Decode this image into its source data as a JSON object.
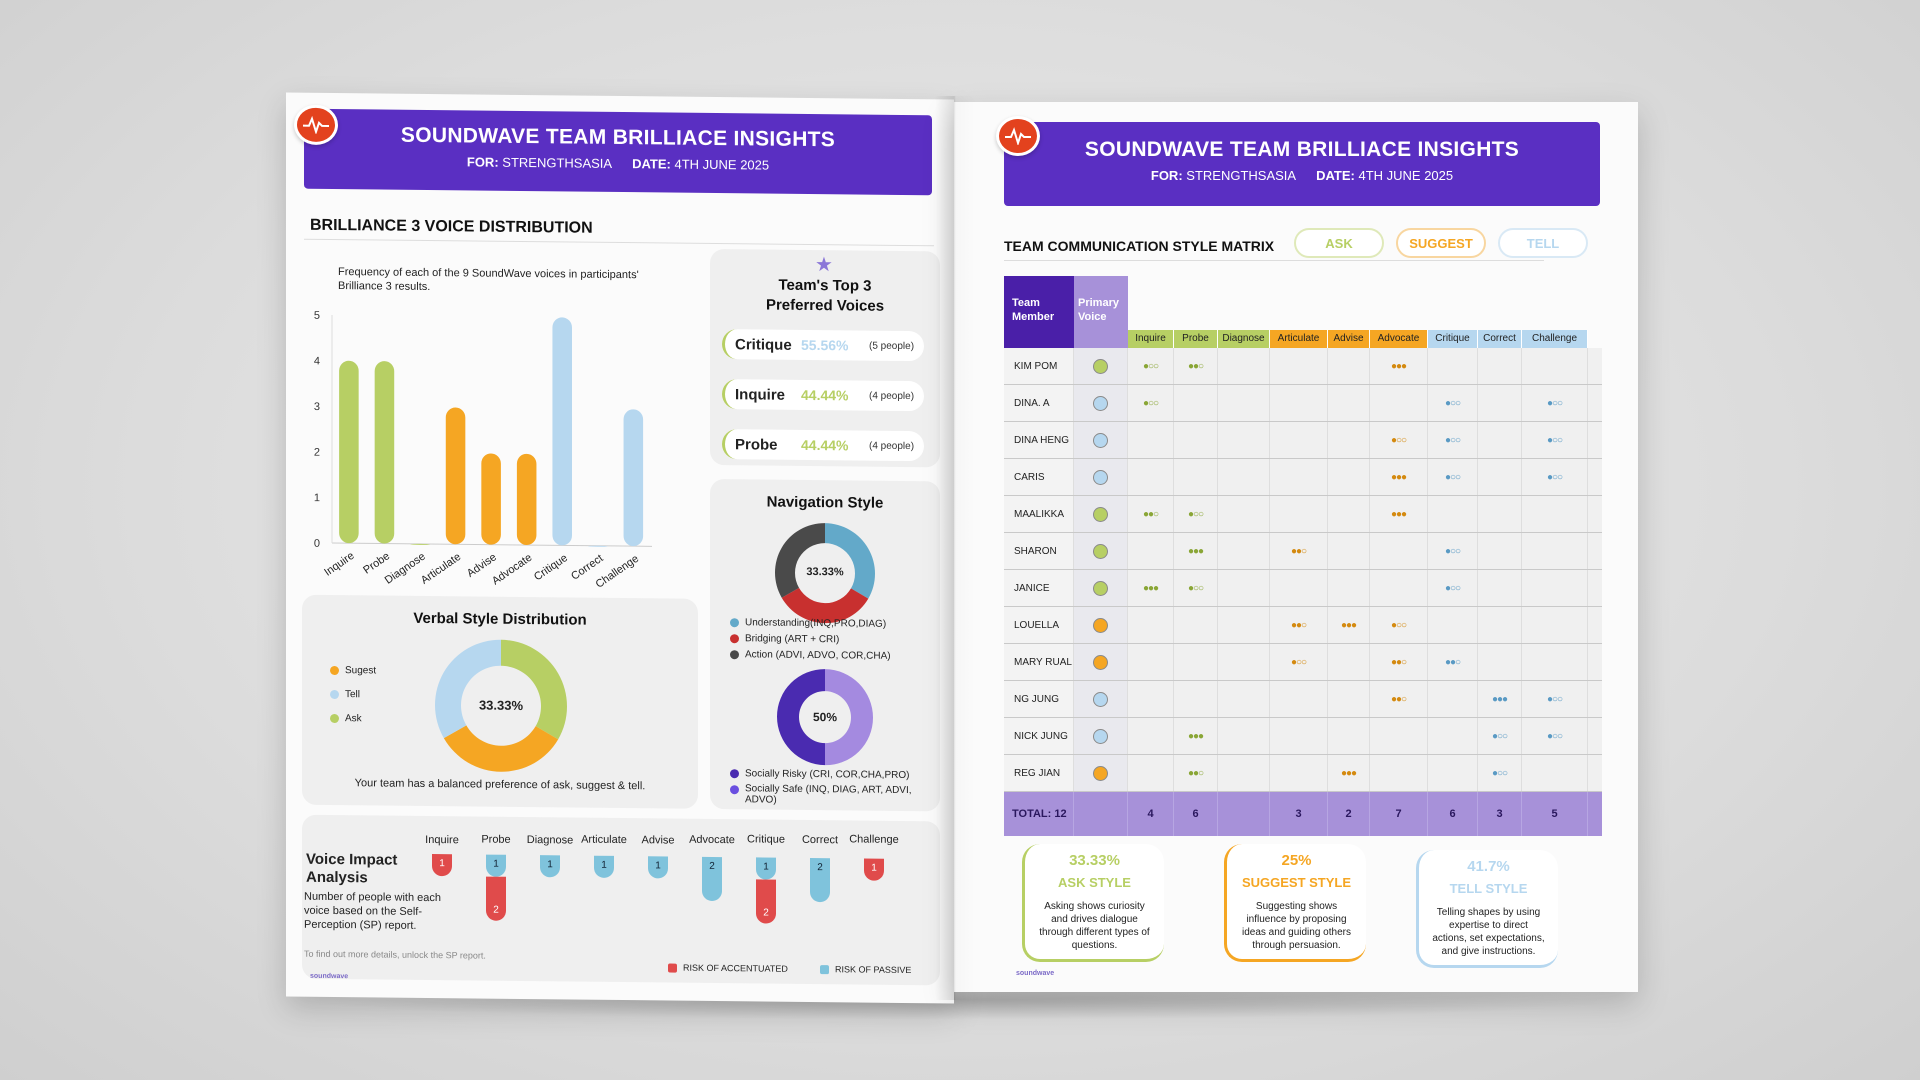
{
  "colors": {
    "banner": "#5a2fc2",
    "ask": "#b7cf64",
    "suggest": "#f5a623",
    "tell": "#b6d7ef",
    "risk_accentuated": "#e04b4b",
    "risk_passive": "#7fc3dc",
    "purple": "#5a2fc2",
    "lilac": "#a791d9"
  },
  "left": {
    "banner": {
      "title": "SOUNDWAVE TEAM BRILLIACE INSIGHTS",
      "for_label": "FOR:",
      "for_value": "STRENGTHSASIA",
      "date_label": "DATE:",
      "date_value": "4TH JUNE 2025"
    },
    "distribution_title": "BRILLIANCE 3 VOICE DISTRIBUTION",
    "bar_note": "Frequency of each of the 9 SoundWave voices in participants' Brilliance 3 results.",
    "top3": {
      "title": "Team's Top 3 Preferred Voices",
      "items": [
        {
          "name": "Critique",
          "pct": "55.56%",
          "people": "(5 people)"
        },
        {
          "name": "Inquire",
          "pct": "44.44%",
          "people": "(4 people)"
        },
        {
          "name": "Probe",
          "pct": "44.44%",
          "people": "(4 people)"
        }
      ]
    },
    "navigation": {
      "title": "Navigation Style",
      "donut1_label": "33.33%",
      "legend1": [
        "Understanding(INQ,PRO,DIAG)",
        "Bridging (ART + CRI)",
        "Action (ADVI, ADVO, COR,CHA)"
      ],
      "donut2_label": "50%",
      "legend2": [
        "Socially Risky (CRI, COR,CHA,PRO)",
        "Socially Safe (INQ, DIAG, ART, ADVI, ADVO)"
      ]
    },
    "verbal": {
      "title": "Verbal Style Distribution",
      "legend": [
        "Sugest",
        "Tell",
        "Ask"
      ],
      "center": "33.33%",
      "note": "Your team has a balanced preference of ask, suggest & tell."
    },
    "impact": {
      "title_line1": "Voice Impact",
      "title_line2": "Analysis",
      "desc": "Number of people with each voice based on the  Self-Perception (SP) report.",
      "footnote": "To find out more details, unlock the SP report.",
      "legend_acc": "RISK OF ACCENTUATED",
      "legend_pas": "RISK OF PASSIVE",
      "columns": [
        {
          "label": "Inquire",
          "passive": "",
          "accentuated": "1"
        },
        {
          "label": "Probe",
          "passive": "1",
          "accentuated": "2"
        },
        {
          "label": "Diagnose",
          "passive": "1",
          "accentuated": ""
        },
        {
          "label": "Articulate",
          "passive": "1",
          "accentuated": ""
        },
        {
          "label": "Advise",
          "passive": "1",
          "accentuated": ""
        },
        {
          "label": "Advocate",
          "passive": "2",
          "accentuated": ""
        },
        {
          "label": "Critique",
          "passive": "1",
          "accentuated": "2"
        },
        {
          "label": "Correct",
          "passive": "2",
          "accentuated": ""
        },
        {
          "label": "Challenge",
          "passive": "",
          "accentuated": "1"
        }
      ]
    },
    "brand": "soundwave"
  },
  "chart_data": [
    {
      "type": "bar",
      "title": "Brilliance 3 Voice Distribution",
      "categories": [
        "Inquire",
        "Probe",
        "Diagnose",
        "Articulate",
        "Advise",
        "Advocate",
        "Critique",
        "Correct",
        "Challenge"
      ],
      "values": [
        4,
        4,
        0,
        3,
        2,
        2,
        5,
        0,
        3
      ],
      "bar_colors": [
        "#b7cf64",
        "#b7cf64",
        "#b7cf64",
        "#f5a623",
        "#f5a623",
        "#f5a623",
        "#b6d7ef",
        "#b6d7ef",
        "#b6d7ef"
      ],
      "yticks": [
        0,
        1,
        2,
        3,
        4,
        5
      ],
      "ylim": [
        0,
        5
      ]
    },
    {
      "type": "pie",
      "title": "Verbal Style Distribution",
      "labels": [
        "Ask",
        "Suggest",
        "Tell"
      ],
      "values": [
        33.33,
        33.33,
        33.33
      ],
      "colors": [
        "#b7cf64",
        "#f5a623",
        "#b6d7ef"
      ]
    },
    {
      "type": "pie",
      "title": "Navigation Style",
      "labels": [
        "Understanding",
        "Bridging",
        "Action"
      ],
      "values": [
        33.33,
        33.33,
        33.33
      ],
      "colors": [
        "#63a9c9",
        "#c8302f",
        "#4a4a4a"
      ]
    },
    {
      "type": "pie",
      "title": "Socially Risky vs Safe",
      "labels": [
        "Socially Risky",
        "Socially Safe"
      ],
      "values": [
        50,
        50
      ],
      "colors": [
        "#4a2bb0",
        "#a48ae0"
      ]
    }
  ],
  "right": {
    "banner": {
      "title": "SOUNDWAVE TEAM BRILLIACE INSIGHTS",
      "for_label": "FOR:",
      "for_value": "STRENGTHSASIA",
      "date_label": "DATE:",
      "date_value": "4TH JUNE 2025"
    },
    "matrix_title": "TEAM COMMUNICATION STYLE MATRIX",
    "chips": [
      "ASK",
      "SUGGEST",
      "TELL"
    ],
    "header_member": "Team Member",
    "header_primary": "Primary Voice",
    "columns": [
      "Inquire",
      "Probe",
      "Diagnose",
      "Articulate",
      "Advise",
      "Advocate",
      "Critique",
      "Correct",
      "Challenge"
    ],
    "rows": [
      {
        "name": "KIM POM",
        "primary": "ask",
        "ratings": [
          "●○○",
          "●●○",
          "",
          "",
          "",
          "●●●",
          "",
          "",
          ""
        ]
      },
      {
        "name": "DINA. A",
        "primary": "tell",
        "ratings": [
          "●○○",
          "",
          "",
          "",
          "",
          "",
          "●○○",
          "",
          "●○○"
        ]
      },
      {
        "name": "DINA HENG",
        "primary": "tell",
        "ratings": [
          "",
          "",
          "",
          "",
          "",
          "●○○",
          "●○○",
          "",
          "●○○"
        ]
      },
      {
        "name": "CARIS",
        "primary": "tell",
        "ratings": [
          "",
          "",
          "",
          "",
          "",
          "●●●",
          "●○○",
          "",
          "●○○"
        ]
      },
      {
        "name": "MAALIKKA",
        "primary": "ask",
        "ratings": [
          "●●○",
          "●○○",
          "",
          "",
          "",
          "●●●",
          "",
          "",
          ""
        ]
      },
      {
        "name": "SHARON",
        "primary": "ask",
        "ratings": [
          "",
          "●●●",
          "",
          "●●○",
          "",
          "",
          "●○○",
          "",
          ""
        ]
      },
      {
        "name": "JANICE",
        "primary": "ask",
        "ratings": [
          "●●●",
          "●○○",
          "",
          "",
          "",
          "",
          "●○○",
          "",
          ""
        ]
      },
      {
        "name": "LOUELLA",
        "primary": "suggest",
        "ratings": [
          "",
          "",
          "",
          "●●○",
          "●●●",
          "●○○",
          "",
          "",
          ""
        ]
      },
      {
        "name": "MARY RUAL",
        "primary": "suggest",
        "ratings": [
          "",
          "",
          "",
          "●○○",
          "",
          "●●○",
          "●●○",
          "",
          ""
        ]
      },
      {
        "name": "NG JUNG",
        "primary": "tell",
        "ratings": [
          "",
          "",
          "",
          "",
          "",
          "●●○",
          "",
          "●●●",
          "●○○"
        ]
      },
      {
        "name": "NICK JUNG",
        "primary": "tell",
        "ratings": [
          "",
          "●●●",
          "",
          "",
          "",
          "",
          "",
          "●○○",
          "●○○"
        ]
      },
      {
        "name": "REG JIAN",
        "primary": "suggest",
        "ratings": [
          "",
          "●●○",
          "",
          "",
          "●●●",
          "",
          "",
          "●○○",
          ""
        ]
      }
    ],
    "total_label": "TOTAL: 12",
    "totals": [
      "4",
      "6",
      "",
      "3",
      "2",
      "7",
      "6",
      "3",
      "5"
    ],
    "styles": [
      {
        "pct": "33.33%",
        "label": "ASK STYLE",
        "desc": "Asking shows curiosity and drives dialogue through different types of questions."
      },
      {
        "pct": "25%",
        "label": "SUGGEST STYLE",
        "desc": "Suggesting shows influence by proposing ideas and guiding others through persuasion."
      },
      {
        "pct": "41.7%",
        "label": "TELL STYLE",
        "desc": "Telling shapes by using expertise to direct actions, set expectations, and give instructions."
      }
    ],
    "brand": "soundwave"
  }
}
